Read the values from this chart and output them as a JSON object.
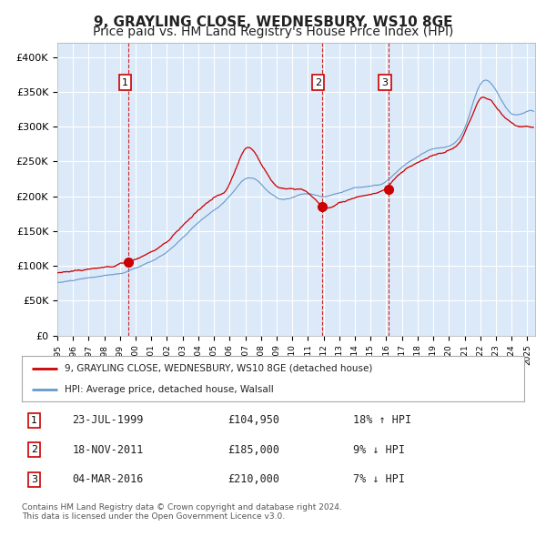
{
  "title": "9, GRAYLING CLOSE, WEDNESBURY, WS10 8GE",
  "subtitle": "Price paid vs. HM Land Registry's House Price Index (HPI)",
  "title_fontsize": 11,
  "subtitle_fontsize": 10,
  "plot_bg_color": "#dce9f8",
  "fig_bg_color": "#ffffff",
  "red_line_color": "#cc0000",
  "blue_line_color": "#6699cc",
  "sale_marker_color": "#cc0000",
  "vline_color": "#cc0000",
  "grid_color": "#ffffff",
  "ylim": [
    0,
    420000
  ],
  "yticks": [
    0,
    50000,
    100000,
    150000,
    200000,
    250000,
    300000,
    350000,
    400000
  ],
  "ytick_labels": [
    "£0",
    "£50K",
    "£100K",
    "£150K",
    "£200K",
    "£250K",
    "£300K",
    "£350K",
    "£400K"
  ],
  "xlim_start": 1995.0,
  "xlim_end": 2025.5,
  "xtick_years": [
    1995,
    1996,
    1997,
    1998,
    1999,
    2000,
    2001,
    2002,
    2003,
    2004,
    2005,
    2006,
    2007,
    2008,
    2009,
    2010,
    2011,
    2012,
    2013,
    2014,
    2015,
    2016,
    2017,
    2018,
    2019,
    2020,
    2021,
    2022,
    2023,
    2024,
    2025
  ],
  "sale_dates": [
    1999.56,
    2011.89,
    2016.17
  ],
  "sale_prices": [
    104950,
    185000,
    210000
  ],
  "sale_labels": [
    "1",
    "2",
    "3"
  ],
  "legend_line1": "9, GRAYLING CLOSE, WEDNESBURY, WS10 8GE (detached house)",
  "legend_line2": "HPI: Average price, detached house, Walsall",
  "table_entries": [
    {
      "num": "1",
      "date": "23-JUL-1999",
      "price": "£104,950",
      "hpi": "18% ↑ HPI"
    },
    {
      "num": "2",
      "date": "18-NOV-2011",
      "price": "£185,000",
      "hpi": "9% ↓ HPI"
    },
    {
      "num": "3",
      "date": "04-MAR-2016",
      "price": "£210,000",
      "hpi": "7% ↓ HPI"
    }
  ],
  "footnote1": "Contains HM Land Registry data © Crown copyright and database right 2024.",
  "footnote2": "This data is licensed under the Open Government Licence v3.0.",
  "hpi_t_base": [
    1995,
    1996,
    1997,
    1998,
    1999,
    2000,
    2001,
    2002,
    2003,
    2004,
    2005,
    2006,
    2007,
    2008,
    2009,
    2010,
    2011,
    2012,
    2013,
    2014,
    2015,
    2016,
    2017,
    2018,
    2019,
    2020,
    2021,
    2022,
    2023,
    2024,
    2025,
    2025.5
  ],
  "hpi_base": [
    76000,
    79000,
    83000,
    86000,
    89000,
    97000,
    107000,
    120000,
    140000,
    162000,
    180000,
    200000,
    225000,
    218000,
    198000,
    198000,
    203000,
    200000,
    205000,
    212000,
    215000,
    222000,
    242000,
    257000,
    268000,
    272000,
    298000,
    360000,
    352000,
    318000,
    322000,
    320000
  ],
  "prop_base": [
    90000,
    93000,
    95000,
    98000,
    103000,
    110000,
    120000,
    135000,
    158000,
    180000,
    198000,
    218000,
    268000,
    248000,
    215000,
    210000,
    205000,
    185000,
    190000,
    198000,
    203000,
    212000,
    235000,
    248000,
    258000,
    265000,
    290000,
    340000,
    328000,
    305000,
    300000,
    298000
  ]
}
